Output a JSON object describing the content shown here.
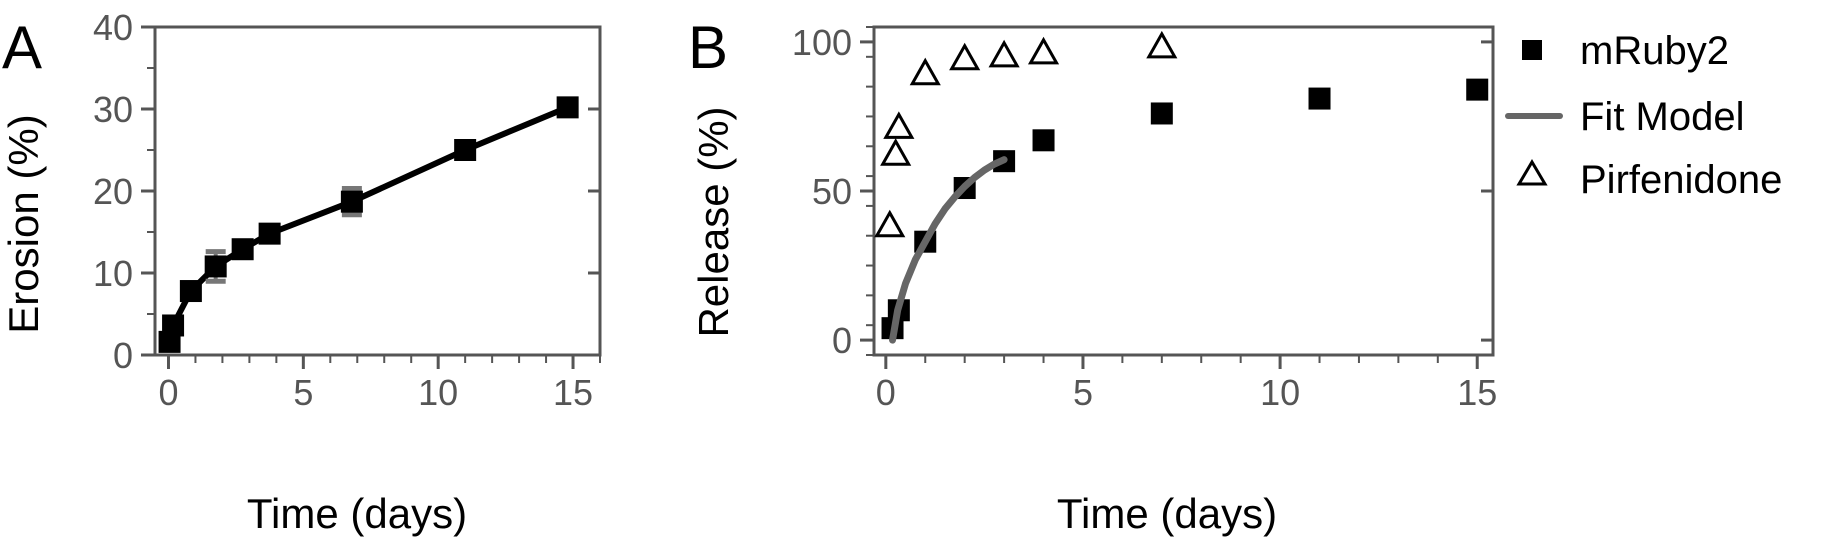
{
  "chart_data": [
    {
      "panel": "A",
      "type": "line",
      "xlabel": "Time (days)",
      "ylabel": "Erosion (%)",
      "xlim": [
        -0.5,
        16
      ],
      "ylim": [
        0,
        40
      ],
      "xticks": [
        0,
        5,
        10,
        15
      ],
      "yticks": [
        0,
        10,
        20,
        30,
        40
      ],
      "grid": false,
      "series": [
        {
          "marker": "filled-square",
          "color": "#000000",
          "errorbar_color": "#777777",
          "x": [
            0.04,
            0.17,
            0.83,
            1.75,
            2.75,
            3.75,
            6.8,
            11,
            14.8
          ],
          "y": [
            1.6,
            3.6,
            7.8,
            10.8,
            12.9,
            14.8,
            18.7,
            25,
            30.2
          ],
          "yerr": [
            0,
            0,
            0,
            1.8,
            0,
            0,
            1.6,
            0,
            0
          ]
        }
      ]
    },
    {
      "panel": "B",
      "type": "scatter",
      "xlabel": "Time (days)",
      "ylabel": "Release (%)",
      "xlim": [
        -0.3,
        15.4
      ],
      "ylim": [
        -5,
        105
      ],
      "xticks": [
        0,
        5,
        10,
        15
      ],
      "yticks": [
        0,
        50,
        100
      ],
      "grid": false,
      "legend_position": "right",
      "series": [
        {
          "name": "mRuby2",
          "marker": "filled-square",
          "color": "#000000",
          "x": [
            0.17,
            0.33,
            1,
            2,
            3,
            4,
            7,
            11,
            15
          ],
          "y": [
            4,
            10,
            33,
            51,
            60,
            67,
            76,
            81,
            84
          ]
        },
        {
          "name": "Fit Model",
          "marker": "line",
          "color": "#666666",
          "x": [
            0.17,
            0.3,
            0.5,
            0.75,
            1,
            1.25,
            1.5,
            1.75,
            2,
            2.25,
            2.5,
            2.75,
            3
          ],
          "y": [
            0,
            10,
            19,
            27,
            33,
            39,
            44,
            48,
            51.5,
            54.5,
            57,
            59,
            60.5
          ]
        },
        {
          "name": "Pirfenidone",
          "marker": "open-triangle",
          "color": "#000000",
          "x": [
            0.1,
            0.25,
            0.33,
            1,
            2,
            3,
            4,
            7
          ],
          "y": [
            38,
            62,
            71,
            89,
            94,
            95,
            96,
            98
          ]
        }
      ]
    }
  ]
}
